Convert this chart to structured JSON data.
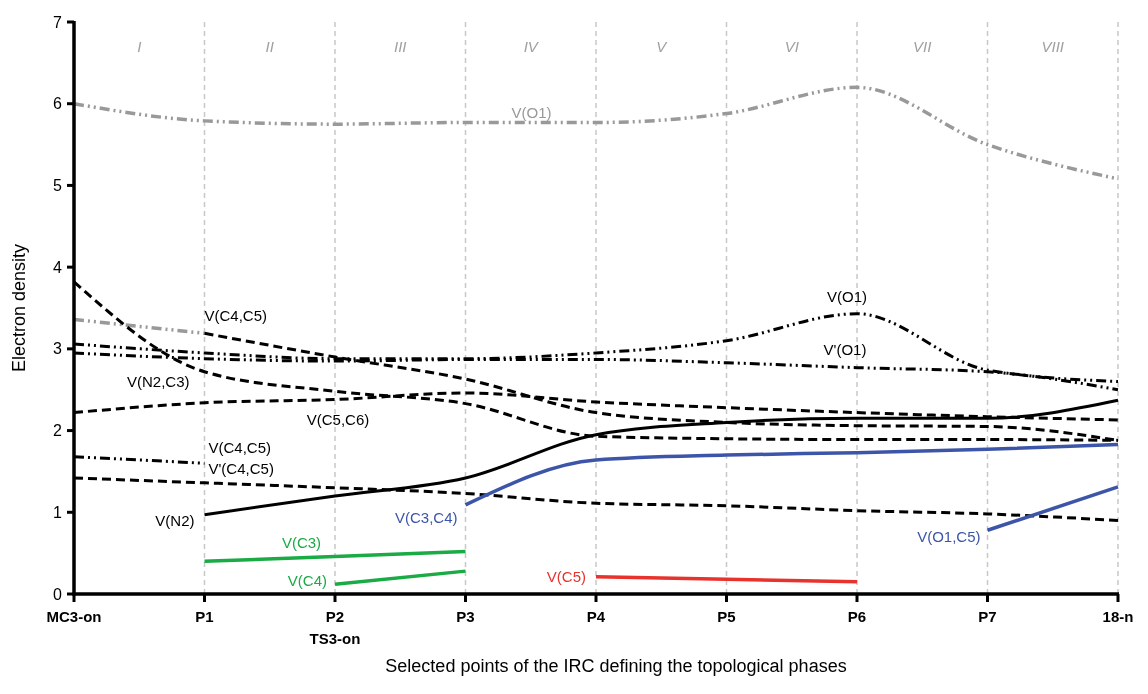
{
  "chart_data": {
    "type": "line",
    "xlabel": "Selected points of the IRC defining the topological phases",
    "ylabel": "Electron density",
    "categories": [
      "MC3-on",
      "P1",
      "P2\nTS3-on",
      "P3",
      "P4",
      "P5",
      "P6",
      "P7",
      "18-n"
    ],
    "ylim": [
      0,
      7
    ],
    "yticks": [
      0,
      1,
      2,
      3,
      4,
      5,
      6,
      7
    ],
    "grid": "x",
    "annotations": [
      "I",
      "II",
      "III",
      "IV",
      "V",
      "VI",
      "VII",
      "VIII"
    ],
    "series": [
      {
        "name": "V(O1)",
        "color": "#999999",
        "line_style": "dashdot",
        "values": [
          6.0,
          5.79,
          5.75,
          5.77,
          5.77,
          5.88,
          6.2,
          5.5,
          5.08
        ]
      },
      {
        "color": "#999999",
        "line_style": "dashdot",
        "values": [
          3.36,
          3.19,
          null,
          null,
          null,
          null,
          null,
          null,
          null
        ]
      },
      {
        "name": "V(C4,C5)",
        "color": "#000000",
        "line_style": "dashed",
        "values": [
          null,
          3.19,
          2.9,
          2.63,
          2.22,
          2.1,
          2.06,
          2.05,
          1.88
        ]
      },
      {
        "name": "V(N2,C3)",
        "color": "#000000",
        "line_style": "dashed",
        "values": [
          3.82,
          2.72,
          2.48,
          2.33,
          1.93,
          1.9,
          1.89,
          1.89,
          1.88
        ]
      },
      {
        "name": "V(C5,C6)",
        "color": "#000000",
        "line_style": "dashed",
        "values": [
          2.22,
          2.34,
          2.38,
          2.46,
          2.35,
          2.28,
          2.22,
          2.17,
          2.13
        ]
      },
      {
        "name": "V(C4,C5)",
        "color": "#000000",
        "line_style": "dashdot",
        "values": [
          1.68,
          1.6,
          null,
          null,
          null,
          null,
          null,
          null,
          null
        ]
      },
      {
        "name": "V'(C4,C5)",
        "color": "#000000",
        "line_style": "dashed",
        "values": [
          1.42,
          1.36,
          1.3,
          1.23,
          1.11,
          1.08,
          1.02,
          0.98,
          0.9
        ]
      },
      {
        "name": "V(O1)",
        "color": "#000000",
        "line_style": "dashdot",
        "values": [
          3.06,
          2.95,
          2.88,
          2.88,
          2.95,
          3.1,
          3.43,
          2.74,
          2.6
        ]
      },
      {
        "name": "V'(O1)",
        "color": "#000000",
        "line_style": "dashdot",
        "values": [
          2.95,
          2.88,
          2.85,
          2.87,
          2.87,
          2.83,
          2.77,
          2.72,
          2.5
        ]
      },
      {
        "name": "V(N2)",
        "color": "#000000",
        "line_style": "solid",
        "values": [
          null,
          0.97,
          1.2,
          1.42,
          1.95,
          2.1,
          2.15,
          2.15,
          2.37
        ]
      },
      {
        "name": "V(C3,C4)",
        "color": "#3d55a8",
        "line_style": "solid",
        "values": [
          null,
          null,
          null,
          1.09,
          1.64,
          1.7,
          1.73,
          1.77,
          1.83
        ]
      },
      {
        "name": "V(O1,C5)",
        "color": "#3d55a8",
        "line_style": "solid",
        "values": [
          null,
          null,
          null,
          null,
          null,
          null,
          null,
          0.78,
          1.31
        ]
      },
      {
        "name": "V(C3)",
        "color": "#1aab45",
        "line_style": "solid",
        "values": [
          null,
          0.4,
          0.46,
          0.52,
          null,
          null,
          null,
          null,
          null
        ]
      },
      {
        "name": "V(C4)",
        "color": "#1aab45",
        "line_style": "solid",
        "values": [
          null,
          null,
          0.12,
          0.28,
          null,
          null,
          null,
          null,
          null
        ]
      },
      {
        "name": "V(C5)",
        "color": "#e8322d",
        "line_style": "solid",
        "values": [
          null,
          null,
          null,
          null,
          0.21,
          0.18,
          0.15,
          null,
          null
        ]
      }
    ]
  }
}
